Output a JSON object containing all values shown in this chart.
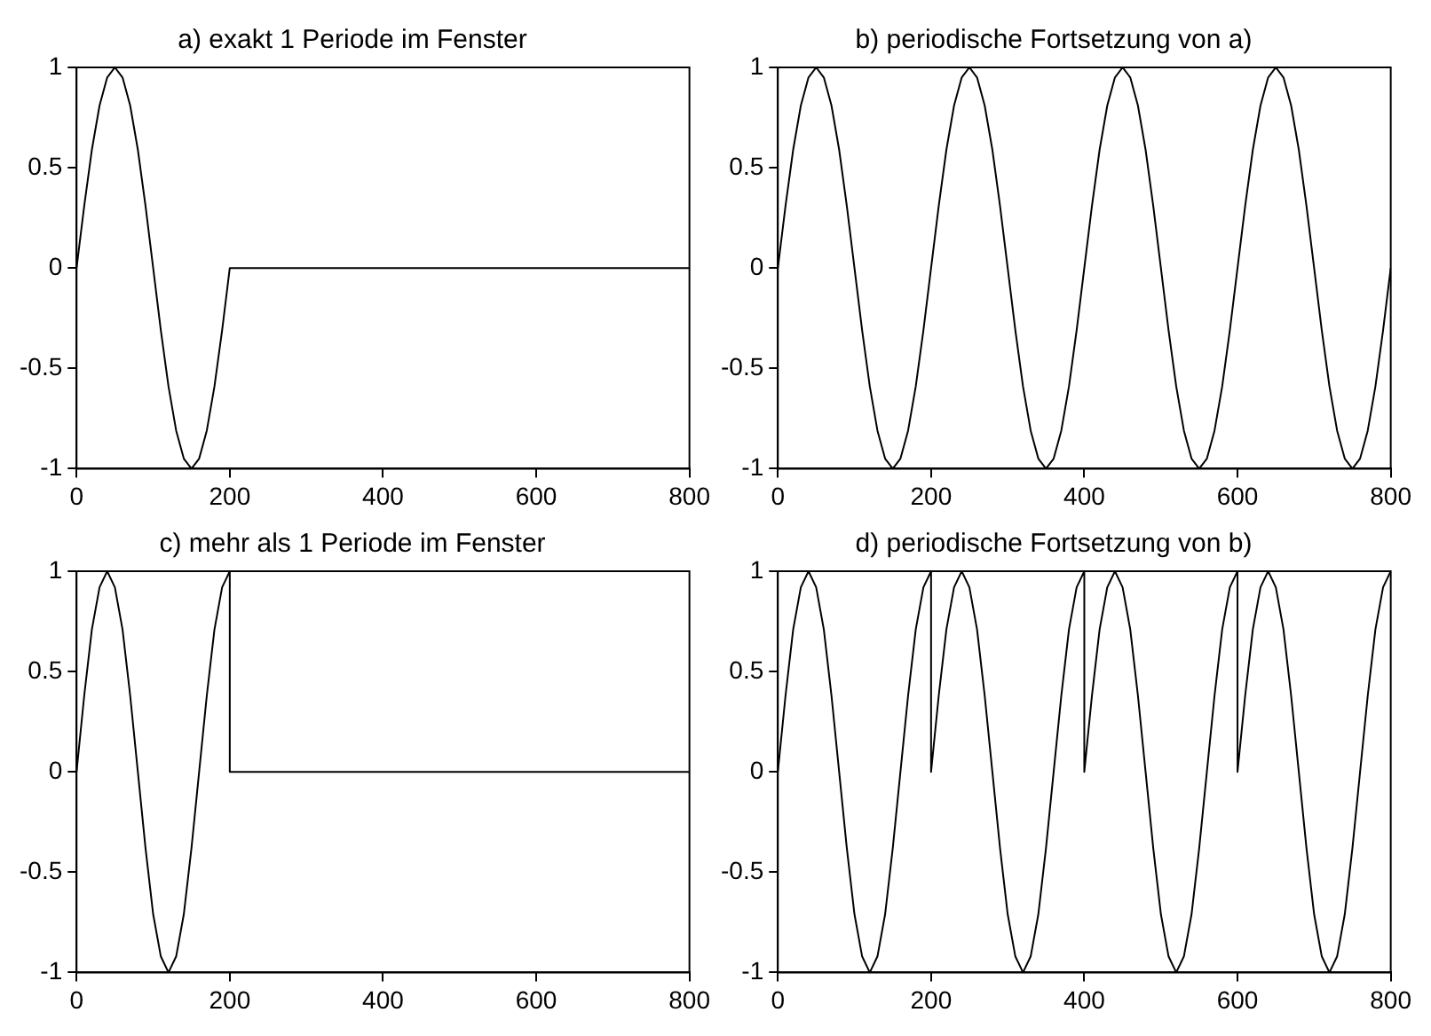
{
  "chart_data": [
    {
      "type": "line",
      "title": "a) exakt 1 Periode im Fenster",
      "xlim": [
        0,
        800
      ],
      "ylim": [
        -1,
        1
      ],
      "xticks": [
        0,
        200,
        400,
        600,
        800
      ],
      "yticks": [
        -1,
        -0.5,
        0,
        0.5,
        1
      ],
      "series": [
        {
          "color": "#000000",
          "x": [
            0,
            10,
            20,
            30,
            40,
            50,
            60,
            70,
            80,
            90,
            100,
            110,
            120,
            130,
            140,
            150,
            160,
            170,
            180,
            190,
            200,
            800
          ],
          "values": [
            0,
            0.31,
            0.59,
            0.81,
            0.95,
            1,
            0.95,
            0.81,
            0.59,
            0.31,
            0,
            -0.31,
            -0.59,
            -0.81,
            -0.95,
            -1,
            -0.95,
            -0.81,
            -0.59,
            -0.31,
            0,
            0
          ]
        }
      ]
    },
    {
      "type": "line",
      "title": "b) periodische Fortsetzung von a)",
      "xlim": [
        0,
        800
      ],
      "ylim": [
        -1,
        1
      ],
      "xticks": [
        0,
        200,
        400,
        600,
        800
      ],
      "yticks": [
        -1,
        -0.5,
        0,
        0.5,
        1
      ],
      "series": [
        {
          "color": "#000000",
          "x": [
            0,
            10,
            20,
            30,
            40,
            50,
            60,
            70,
            80,
            90,
            100,
            110,
            120,
            130,
            140,
            150,
            160,
            170,
            180,
            190,
            200,
            210,
            220,
            230,
            240,
            250,
            260,
            270,
            280,
            290,
            300,
            310,
            320,
            330,
            340,
            350,
            360,
            370,
            380,
            390,
            400,
            410,
            420,
            430,
            440,
            450,
            460,
            470,
            480,
            490,
            500,
            510,
            520,
            530,
            540,
            550,
            560,
            570,
            580,
            590,
            600,
            610,
            620,
            630,
            640,
            650,
            660,
            670,
            680,
            690,
            700,
            710,
            720,
            730,
            740,
            750,
            760,
            770,
            780,
            790,
            800
          ],
          "values": [
            0,
            0.31,
            0.59,
            0.81,
            0.95,
            1,
            0.95,
            0.81,
            0.59,
            0.31,
            0,
            -0.31,
            -0.59,
            -0.81,
            -0.95,
            -1,
            -0.95,
            -0.81,
            -0.59,
            -0.31,
            0,
            0.31,
            0.59,
            0.81,
            0.95,
            1,
            0.95,
            0.81,
            0.59,
            0.31,
            0,
            -0.31,
            -0.59,
            -0.81,
            -0.95,
            -1,
            -0.95,
            -0.81,
            -0.59,
            -0.31,
            0,
            0.31,
            0.59,
            0.81,
            0.95,
            1,
            0.95,
            0.81,
            0.59,
            0.31,
            0,
            -0.31,
            -0.59,
            -0.81,
            -0.95,
            -1,
            -0.95,
            -0.81,
            -0.59,
            -0.31,
            0,
            0.31,
            0.59,
            0.81,
            0.95,
            1,
            0.95,
            0.81,
            0.59,
            0.31,
            0,
            -0.31,
            -0.59,
            -0.81,
            -0.95,
            -1,
            -0.95,
            -0.81,
            -0.59,
            -0.31,
            0
          ]
        }
      ]
    },
    {
      "type": "line",
      "title": "c) mehr als 1 Periode im Fenster",
      "xlim": [
        0,
        800
      ],
      "ylim": [
        -1,
        1
      ],
      "xticks": [
        0,
        200,
        400,
        600,
        800
      ],
      "yticks": [
        -1,
        -0.5,
        0,
        0.5,
        1
      ],
      "series": [
        {
          "color": "#000000",
          "x": [
            0,
            10,
            20,
            30,
            40,
            50,
            60,
            70,
            80,
            90,
            100,
            110,
            120,
            130,
            140,
            150,
            160,
            170,
            180,
            190,
            200,
            200,
            800
          ],
          "values": [
            0,
            0.38,
            0.71,
            0.92,
            1,
            0.92,
            0.71,
            0.38,
            0,
            -0.38,
            -0.71,
            -0.92,
            -1,
            -0.92,
            -0.71,
            -0.38,
            0,
            0.38,
            0.71,
            0.92,
            1,
            0,
            0
          ]
        }
      ]
    },
    {
      "type": "line",
      "title": "d) periodische Fortsetzung von b)",
      "xlim": [
        0,
        800
      ],
      "ylim": [
        -1,
        1
      ],
      "xticks": [
        0,
        200,
        400,
        600,
        800
      ],
      "yticks": [
        -1,
        -0.5,
        0,
        0.5,
        1
      ],
      "series": [
        {
          "color": "#000000",
          "x": [
            0,
            10,
            20,
            30,
            40,
            50,
            60,
            70,
            80,
            90,
            100,
            110,
            120,
            130,
            140,
            150,
            160,
            170,
            180,
            190,
            200,
            200,
            210,
            220,
            230,
            240,
            250,
            260,
            270,
            280,
            290,
            300,
            310,
            320,
            330,
            340,
            350,
            360,
            370,
            380,
            390,
            400,
            400,
            410,
            420,
            430,
            440,
            450,
            460,
            470,
            480,
            490,
            500,
            510,
            520,
            530,
            540,
            550,
            560,
            570,
            580,
            590,
            600,
            600,
            610,
            620,
            630,
            640,
            650,
            660,
            670,
            680,
            690,
            700,
            710,
            720,
            730,
            740,
            750,
            760,
            770,
            780,
            790,
            800
          ],
          "values": [
            0,
            0.38,
            0.71,
            0.92,
            1,
            0.92,
            0.71,
            0.38,
            0,
            -0.38,
            -0.71,
            -0.92,
            -1,
            -0.92,
            -0.71,
            -0.38,
            0,
            0.38,
            0.71,
            0.92,
            1,
            0,
            0.38,
            0.71,
            0.92,
            1,
            0.92,
            0.71,
            0.38,
            0,
            -0.38,
            -0.71,
            -0.92,
            -1,
            -0.92,
            -0.71,
            -0.38,
            0,
            0.38,
            0.71,
            0.92,
            1,
            0,
            0.38,
            0.71,
            0.92,
            1,
            0.92,
            0.71,
            0.38,
            0,
            -0.38,
            -0.71,
            -0.92,
            -1,
            -0.92,
            -0.71,
            -0.38,
            0,
            0.38,
            0.71,
            0.92,
            1,
            0,
            0.38,
            0.71,
            0.92,
            1,
            0.92,
            0.71,
            0.38,
            0,
            -0.38,
            -0.71,
            -0.92,
            -1,
            -0.92,
            -0.71,
            -0.38,
            0,
            0.38,
            0.71,
            0.92,
            1
          ]
        }
      ]
    }
  ]
}
